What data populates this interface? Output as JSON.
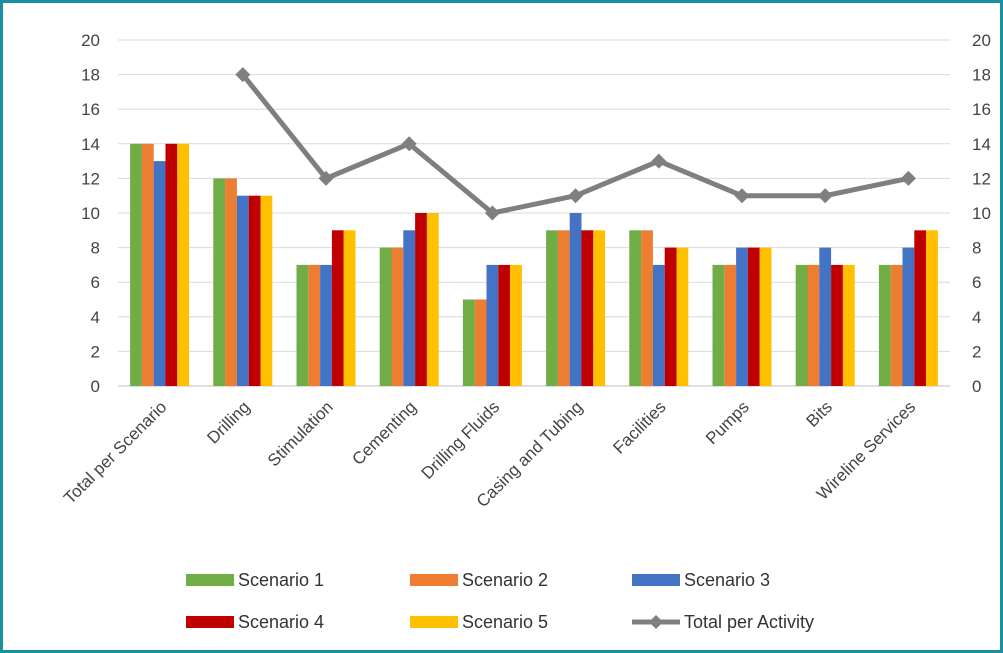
{
  "chart_data": {
    "type": "bar",
    "categories": [
      "Total per Scenario",
      "Drilling",
      "Stimulation",
      "Cementing",
      "Drilling Fluids",
      "Casing and Tubing",
      "Facilities",
      "Pumps",
      "Bits",
      "Wireline Services"
    ],
    "series": [
      {
        "name": "Scenario 1",
        "color": "#70ad47",
        "values": [
          14,
          12,
          7,
          8,
          5,
          9,
          9,
          7,
          7,
          7
        ]
      },
      {
        "name": "Scenario 2",
        "color": "#ed7d31",
        "values": [
          14,
          12,
          7,
          8,
          5,
          9,
          9,
          7,
          7,
          7
        ]
      },
      {
        "name": "Scenario 3",
        "color": "#4472c4",
        "values": [
          13,
          11,
          7,
          9,
          7,
          10,
          7,
          8,
          8,
          8
        ]
      },
      {
        "name": "Scenario 4",
        "color": "#c00000",
        "values": [
          14,
          11,
          9,
          10,
          7,
          9,
          8,
          8,
          7,
          9
        ]
      },
      {
        "name": "Scenario 5",
        "color": "#ffc000",
        "values": [
          14,
          11,
          9,
          10,
          7,
          9,
          8,
          8,
          7,
          9
        ]
      }
    ],
    "line": {
      "name": "Total per Activity",
      "color": "#7f7f7f",
      "values": [
        null,
        18,
        12,
        14,
        10,
        11,
        13,
        11,
        11,
        12
      ],
      "axis": "secondary"
    },
    "ylim": [
      0,
      20
    ],
    "y2lim": [
      0,
      20
    ],
    "yticks": [
      0,
      2,
      4,
      6,
      8,
      10,
      12,
      14,
      16,
      18,
      20
    ],
    "grid": true,
    "legend": "bottom"
  }
}
